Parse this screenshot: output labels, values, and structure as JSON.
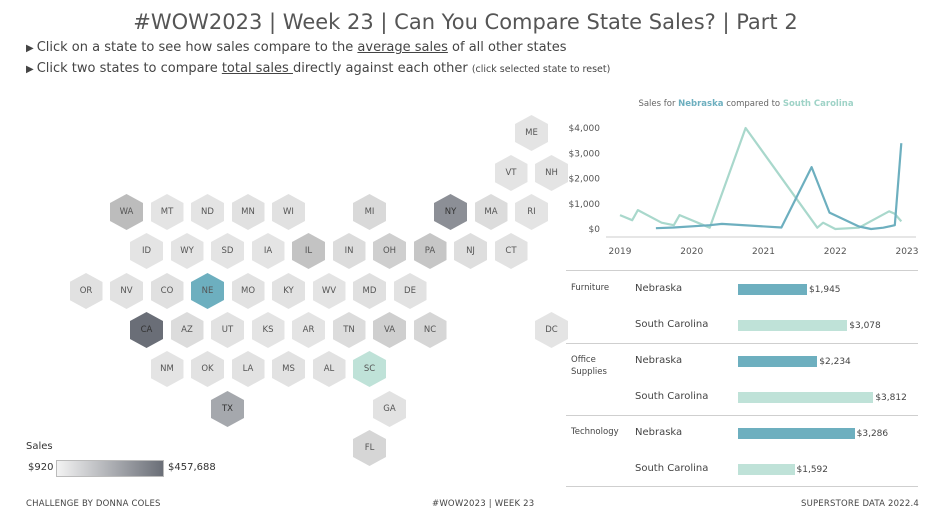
{
  "header": {
    "title": "#WOW2023  | Week 23  |  Can You Compare State Sales? | Part 2",
    "instr1": {
      "arrow": "▶",
      "pre": "Click on a state to see how sales compare to the ",
      "link": "average sales",
      "post": " of all other states"
    },
    "instr2": {
      "arrow": "▶",
      "pre": "Click two states to compare ",
      "link": "total sales ",
      "post": "directly against each other ",
      "note": "(click selected state to reset)"
    }
  },
  "colors": {
    "nebraska": "#6dafbf",
    "south_carolina": "#bfe2d8",
    "south_carolina_line": "#a9d8cc"
  },
  "hexmap": {
    "states": [
      {
        "abbr": "ME",
        "row": 0,
        "col": 11,
        "shade": "#e4e4e4"
      },
      {
        "abbr": "VT",
        "row": 1,
        "col": 10,
        "shade": "#e4e4e4"
      },
      {
        "abbr": "NH",
        "row": 1,
        "col": 11,
        "shade": "#e4e4e4"
      },
      {
        "abbr": "WA",
        "row": 2,
        "col": 1,
        "shade": "#bcbcbc"
      },
      {
        "abbr": "MT",
        "row": 2,
        "col": 2,
        "shade": "#e4e4e4"
      },
      {
        "abbr": "ND",
        "row": 2,
        "col": 3,
        "shade": "#e4e4e4"
      },
      {
        "abbr": "MN",
        "row": 2,
        "col": 4,
        "shade": "#e1e1e1"
      },
      {
        "abbr": "WI",
        "row": 2,
        "col": 5,
        "shade": "#e1e1e1"
      },
      {
        "abbr": "MI",
        "row": 2,
        "col": 7,
        "shade": "#d9d9d9"
      },
      {
        "abbr": "NY",
        "row": 2,
        "col": 9,
        "shade": "#8c8f96"
      },
      {
        "abbr": "MA",
        "row": 2,
        "col": 10,
        "shade": "#dcdcdc"
      },
      {
        "abbr": "RI",
        "row": 2,
        "col": 11,
        "shade": "#e4e4e4"
      },
      {
        "abbr": "ID",
        "row": 3,
        "col": 1,
        "shade": "#e4e4e4"
      },
      {
        "abbr": "WY",
        "row": 3,
        "col": 2,
        "shade": "#e4e4e4"
      },
      {
        "abbr": "SD",
        "row": 3,
        "col": 3,
        "shade": "#e4e4e4"
      },
      {
        "abbr": "IA",
        "row": 3,
        "col": 4,
        "shade": "#e4e4e4"
      },
      {
        "abbr": "IL",
        "row": 3,
        "col": 5,
        "shade": "#c3c3c3"
      },
      {
        "abbr": "IN",
        "row": 3,
        "col": 6,
        "shade": "#dcdcdc"
      },
      {
        "abbr": "OH",
        "row": 3,
        "col": 7,
        "shade": "#cfcfcf"
      },
      {
        "abbr": "PA",
        "row": 3,
        "col": 8,
        "shade": "#c6c6c6"
      },
      {
        "abbr": "NJ",
        "row": 3,
        "col": 9,
        "shade": "#dedede"
      },
      {
        "abbr": "CT",
        "row": 3,
        "col": 10,
        "shade": "#e2e2e2"
      },
      {
        "abbr": "OR",
        "row": 4,
        "col": 0,
        "shade": "#e1e1e1"
      },
      {
        "abbr": "NV",
        "row": 4,
        "col": 1,
        "shade": "#e2e2e2"
      },
      {
        "abbr": "CO",
        "row": 4,
        "col": 2,
        "shade": "#e0e0e0"
      },
      {
        "abbr": "NE",
        "row": 4,
        "col": 3,
        "shade": "#6dafbf"
      },
      {
        "abbr": "MO",
        "row": 4,
        "col": 4,
        "shade": "#e2e2e2"
      },
      {
        "abbr": "KY",
        "row": 4,
        "col": 5,
        "shade": "#e2e2e2"
      },
      {
        "abbr": "WV",
        "row": 4,
        "col": 6,
        "shade": "#e4e4e4"
      },
      {
        "abbr": "MD",
        "row": 4,
        "col": 7,
        "shade": "#e0e0e0"
      },
      {
        "abbr": "DE",
        "row": 4,
        "col": 8,
        "shade": "#e2e2e2"
      },
      {
        "abbr": "CA",
        "row": 5,
        "col": 1,
        "shade": "#6a6e77"
      },
      {
        "abbr": "AZ",
        "row": 5,
        "col": 2,
        "shade": "#dcdcdc"
      },
      {
        "abbr": "UT",
        "row": 5,
        "col": 3,
        "shade": "#e2e2e2"
      },
      {
        "abbr": "KS",
        "row": 5,
        "col": 4,
        "shade": "#e4e4e4"
      },
      {
        "abbr": "AR",
        "row": 5,
        "col": 5,
        "shade": "#e4e4e4"
      },
      {
        "abbr": "TN",
        "row": 5,
        "col": 6,
        "shade": "#dcdcdc"
      },
      {
        "abbr": "VA",
        "row": 5,
        "col": 7,
        "shade": "#cfcfcf"
      },
      {
        "abbr": "NC",
        "row": 5,
        "col": 8,
        "shade": "#d6d6d6"
      },
      {
        "abbr": "DC",
        "row": 5,
        "col": 11,
        "shade": "#e4e4e4"
      },
      {
        "abbr": "NM",
        "row": 6,
        "col": 2,
        "shade": "#e4e4e4"
      },
      {
        "abbr": "OK",
        "row": 6,
        "col": 3,
        "shade": "#e2e2e2"
      },
      {
        "abbr": "LA",
        "row": 6,
        "col": 4,
        "shade": "#e2e2e2"
      },
      {
        "abbr": "MS",
        "row": 6,
        "col": 5,
        "shade": "#e2e2e2"
      },
      {
        "abbr": "AL",
        "row": 6,
        "col": 6,
        "shade": "#e2e2e2"
      },
      {
        "abbr": "SC",
        "row": 6,
        "col": 7,
        "shade": "#bfe2d8"
      },
      {
        "abbr": "TX",
        "row": 7,
        "col": 3,
        "shade": "#a5a8ad"
      },
      {
        "abbr": "GA",
        "row": 7,
        "col": 7,
        "shade": "#e2e2e2"
      },
      {
        "abbr": "FL",
        "row": 8,
        "col": 7,
        "shade": "#d6d6d6"
      }
    ]
  },
  "legend": {
    "title": "Sales",
    "min": "$920",
    "max": "$457,688"
  },
  "line_chart": {
    "title_pre": "Sales for ",
    "state_a": "Nebraska",
    "title_mid": " compared to ",
    "state_b": "South Carolina"
  },
  "chart_data": [
    {
      "type": "line",
      "title": "Sales for Nebraska compared to South Carolina",
      "y_ticks": [
        "$4,000",
        "$3,000",
        "$2,000",
        "$1,000",
        "$0"
      ],
      "x_ticks": [
        "2019",
        "2020",
        "2021",
        "2022",
        "2023"
      ],
      "ylim": [
        0,
        4000
      ],
      "xlim": [
        2019,
        2023
      ],
      "grid": false,
      "series": [
        {
          "name": "South Carolina",
          "x": [
            2019.0,
            2019.17,
            2019.25,
            2019.58,
            2019.75,
            2019.83,
            2020.25,
            2020.75,
            2021.75,
            2021.83,
            2022.0,
            2022.33,
            2022.75,
            2022.83,
            2022.92
          ],
          "y": [
            550,
            350,
            750,
            250,
            150,
            550,
            50,
            4000,
            50,
            250,
            0,
            50,
            700,
            600,
            300
          ]
        },
        {
          "name": "Nebraska",
          "x": [
            2019.5,
            2019.75,
            2020.25,
            2020.42,
            2021.25,
            2021.67,
            2021.92,
            2022.33,
            2022.5,
            2022.67,
            2022.83,
            2022.92
          ],
          "y": [
            30,
            60,
            150,
            200,
            60,
            2450,
            650,
            100,
            0,
            50,
            150,
            3400
          ]
        }
      ]
    },
    {
      "type": "bar",
      "title": "",
      "categories": [
        "Furniture",
        "Office Supplies",
        "Technology"
      ],
      "series": [
        {
          "name": "Nebraska",
          "values": [
            1945,
            2234,
            3286
          ],
          "labels": [
            "$1,945",
            "$2,234",
            "$3,286"
          ]
        },
        {
          "name": "South Carolina",
          "values": [
            3078,
            3812,
            1592
          ],
          "labels": [
            "$3,078",
            "$3,812",
            "$1,592"
          ]
        }
      ]
    }
  ],
  "footer": {
    "left": "CHALLENGE BY DONNA COLES",
    "center": "#WOW2023 | WEEK 23",
    "right": "SUPERSTORE DATA 2022.4"
  }
}
